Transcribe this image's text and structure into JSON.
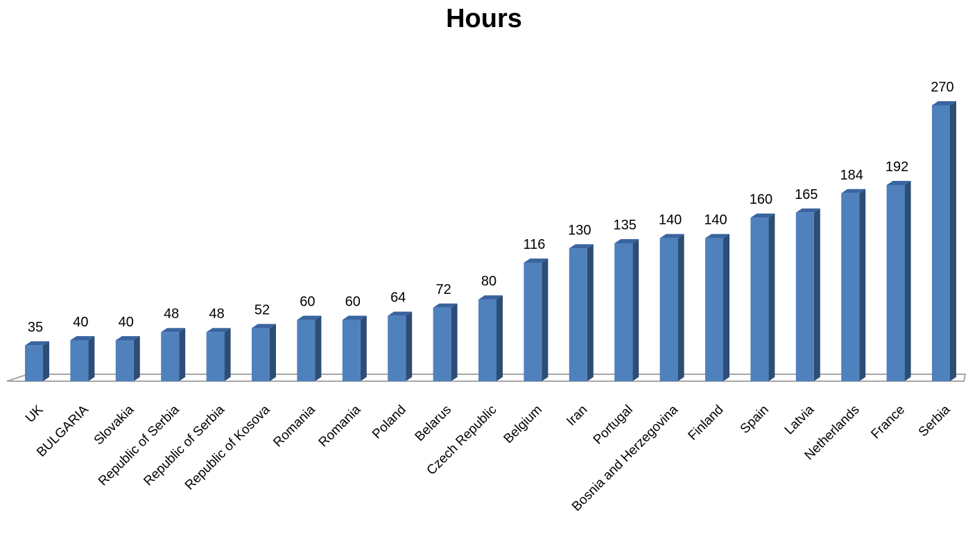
{
  "chart_data": {
    "type": "bar",
    "title": "Hours",
    "xlabel": "",
    "ylabel": "",
    "categories": [
      "UK",
      "BULGARIA",
      "Slovakia",
      "Republic of Serbia",
      "Republic of Serbia",
      "Republic of Kosova",
      "Romania",
      "Romania",
      "Poland",
      "Belarus",
      "Czech Republic",
      "Belgium",
      "Iran",
      "Portugal",
      "Bosnia and Herzegovina",
      "Finland",
      "Spain",
      "Latvia",
      "Netherlands",
      "France",
      "Serbia"
    ],
    "values": [
      35,
      40,
      40,
      48,
      48,
      52,
      60,
      60,
      64,
      72,
      80,
      116,
      130,
      135,
      140,
      140,
      160,
      165,
      184,
      192,
      270
    ],
    "ylim": [
      0,
      270
    ],
    "grid": false,
    "legend": "none",
    "bar_style": "3d",
    "colors": {
      "bar_front": "#4f81bd",
      "bar_side": "#2c4d75",
      "bar_top": "#3a64a0",
      "floor_line": "#a6a6a6"
    }
  }
}
